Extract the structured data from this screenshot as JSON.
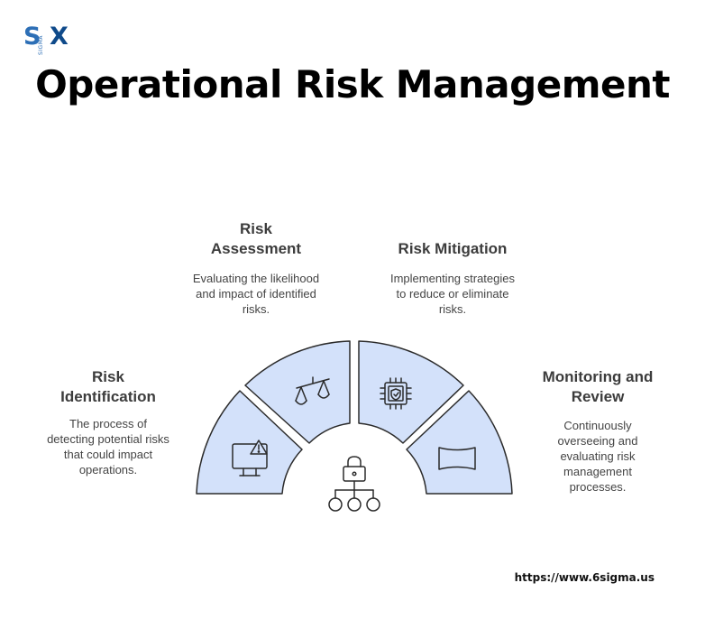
{
  "logo": {
    "left": "S",
    "right": "X",
    "vertical": "SIGMA"
  },
  "title": "Operational Risk Management",
  "stages": [
    {
      "title": "Risk Identification",
      "title_lines": [
        "Risk",
        "Identification"
      ],
      "desc_lines": [
        "The process of",
        "detecting potential risks",
        "that could impact",
        "operations."
      ],
      "icon": "monitor-warning-icon"
    },
    {
      "title": "Risk Assessment",
      "title_lines": [
        "Risk",
        "Assessment"
      ],
      "desc_lines": [
        "Evaluating the likelihood",
        "and impact of identified",
        "risks."
      ],
      "icon": "balance-scale-icon"
    },
    {
      "title": "Risk Mitigation",
      "title_lines": [
        "Risk Mitigation"
      ],
      "desc_lines": [
        "Implementing strategies",
        "to reduce or eliminate",
        "risks."
      ],
      "icon": "chip-shield-icon"
    },
    {
      "title": "Monitoring and Review",
      "title_lines": [
        "Monitoring and",
        "Review"
      ],
      "desc_lines": [
        "Continuously",
        "overseeing and",
        "evaluating risk",
        "management",
        "processes."
      ],
      "icon": "curved-screen-icon"
    }
  ],
  "center_icon": "lock-network-icon",
  "colors": {
    "segment_fill": "#d3e1fa",
    "segment_stroke": "#2b2b2b",
    "text": "#3c3c3c"
  },
  "url": "https://www.6sigma.us"
}
